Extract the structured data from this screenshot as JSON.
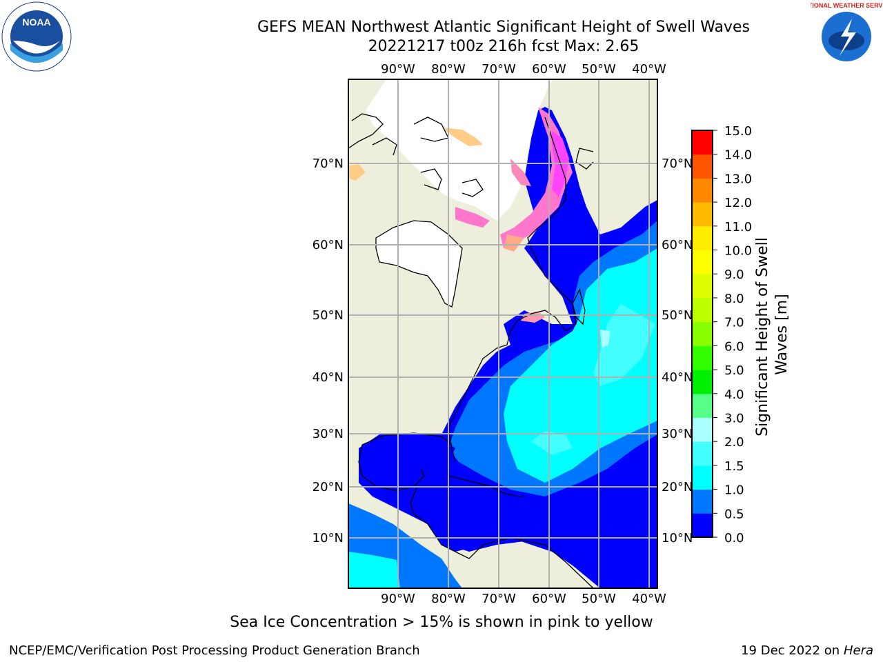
{
  "header": {
    "title_line1": "GEFS MEAN Northwest Atlantic Significant Height of Swell Waves",
    "title_line2": "20221217 t00z 216h fcst   Max: 2.65"
  },
  "logos": {
    "noaa": "NOAA",
    "noaa_ring": "NATIONAL OCEANIC AND ATMOSPHERIC ADMINISTRATION · U.S. DEPARTMENT OF COMMERCE",
    "nws_ring": "NATIONAL WEATHER SERVICE"
  },
  "map": {
    "lon_labels": [
      "90°W",
      "80°W",
      "70°W",
      "60°W",
      "50°W",
      "40°W"
    ],
    "lat_labels": [
      "70°N",
      "60°N",
      "50°N",
      "40°N",
      "30°N",
      "20°N",
      "10°N"
    ],
    "colors": {
      "land": "#eeeedc",
      "ice_free_land": "#ffffff",
      "grid": "#b0b0b0"
    }
  },
  "colorbar": {
    "label": "Significant Height of Swell Waves [m]",
    "levels": [
      "0.0",
      "0.5",
      "1.0",
      "1.5",
      "2.0",
      "3.0",
      "4.0",
      "5.0",
      "6.0",
      "7.0",
      "8.0",
      "9.0",
      "10.0",
      "11.0",
      "12.0",
      "13.0",
      "14.0",
      "15.0"
    ],
    "colors": [
      "#0000ff",
      "#0077ff",
      "#00ffff",
      "#44ffff",
      "#aaffff",
      "#55ff88",
      "#00ee00",
      "#33ff00",
      "#88ff00",
      "#bbff00",
      "#ddff00",
      "#ffff00",
      "#ffee00",
      "#ffbb00",
      "#ff8800",
      "#ff5500",
      "#ff0000"
    ]
  },
  "note": "Sea Ice Concentration > 15% is shown in pink to yellow",
  "footer": {
    "left": "NCEP/EMC/Verification Post Processing Product Generation Branch",
    "date": "19 Dec 2022 on",
    "machine": "Hera"
  }
}
